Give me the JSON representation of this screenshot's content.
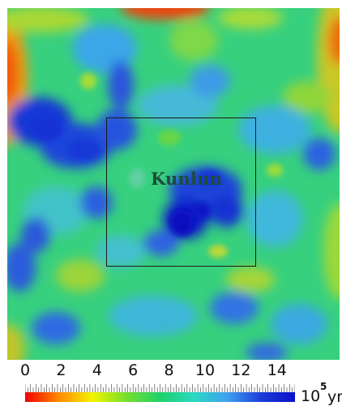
{
  "map": {
    "region_label": "Kunlun",
    "colorscale": [
      "#f20000",
      "#ff8a00",
      "#f3f300",
      "#74e02c",
      "#1fd06a",
      "#29d9c2",
      "#3fa0f0",
      "#1a3cd9",
      "#0a10c8"
    ]
  },
  "colorbar": {
    "ticks": [
      "0",
      "2",
      "4",
      "6",
      "8",
      "10",
      "12",
      "14"
    ],
    "range": [
      0,
      15
    ],
    "unit_base": "10",
    "unit_exponent": "5",
    "unit_suffix": "yr"
  }
}
